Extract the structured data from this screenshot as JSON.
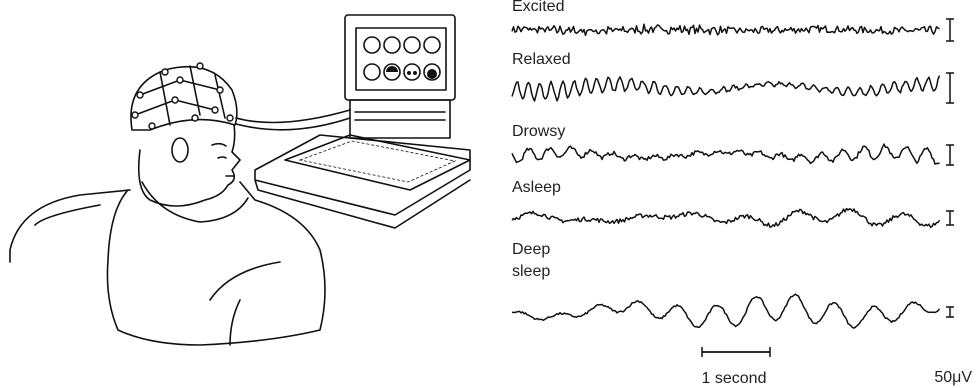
{
  "traces": [
    {
      "label": "Excited"
    },
    {
      "label": "Relaxed"
    },
    {
      "label": "Drowsy"
    },
    {
      "label": "Asleep"
    },
    {
      "label_lines": [
        "Deep",
        "sleep"
      ]
    }
  ],
  "scale": {
    "time": "1 second",
    "voltage": "50μV"
  }
}
